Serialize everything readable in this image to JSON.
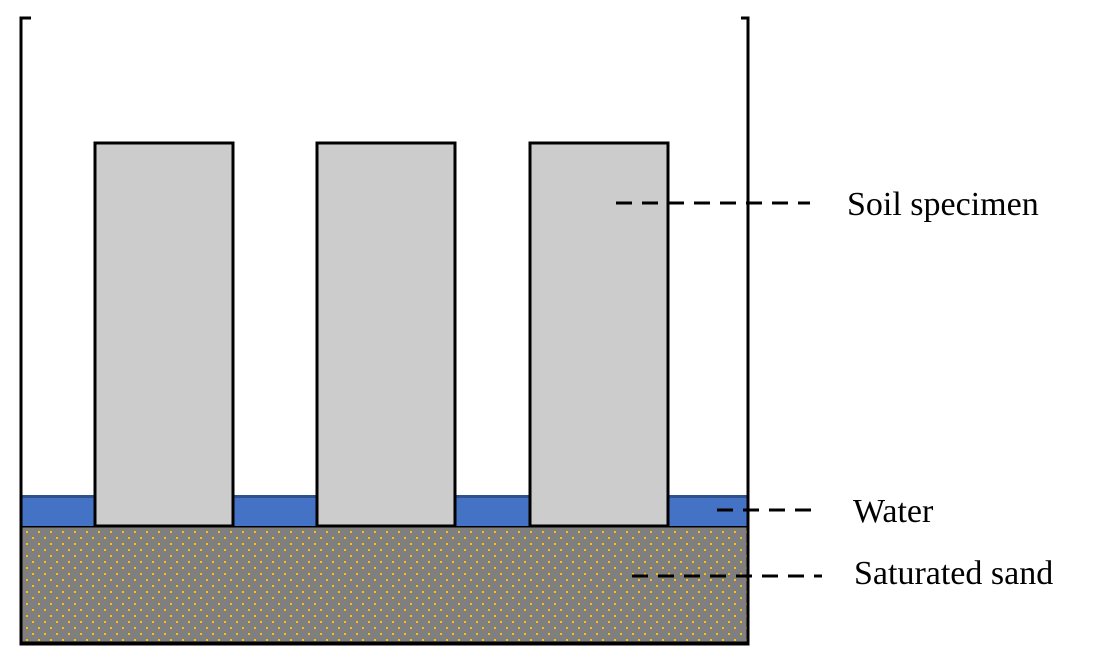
{
  "labels": {
    "soil_specimen": "Soil specimen",
    "water": "Water",
    "saturated_sand": "Saturated sand"
  },
  "colors": {
    "container": "#000000",
    "specimen_fill": "#cccccc",
    "water_fill": "#4472c4",
    "water_surface": "#2f528f",
    "sand_fill": "#7f7f7f",
    "sand_dots": "#ffc000",
    "leader_line": "#000000"
  }
}
